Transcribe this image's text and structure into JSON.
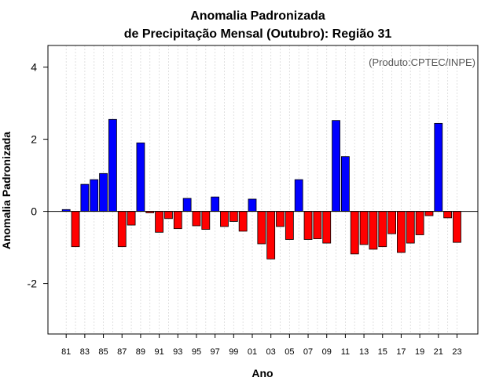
{
  "chart_data": {
    "type": "bar",
    "title_line1": "Anomalia Padronizada",
    "title_line2": "de Precipitação Mensal (Outubro): Região 31",
    "credit": "(Produto:CPTEC/INPE)",
    "xlabel": "Ano",
    "ylabel": "Anomalia Padronizada",
    "ylim": [
      -3.4,
      4.6
    ],
    "yticks": [
      -2,
      0,
      2,
      4
    ],
    "ytick_labels": [
      "-2",
      "0",
      "2",
      "4"
    ],
    "xtick_labels": [
      "81",
      "83",
      "85",
      "87",
      "89",
      "91",
      "93",
      "95",
      "97",
      "99",
      "01",
      "03",
      "05",
      "07",
      "09",
      "11",
      "13",
      "15",
      "17",
      "19",
      "21",
      "23"
    ],
    "positive_color": "#0000ff",
    "negative_color": "#ff0000",
    "categories": [
      "1981",
      "1982",
      "1983",
      "1984",
      "1985",
      "1986",
      "1987",
      "1988",
      "1989",
      "1990",
      "1991",
      "1992",
      "1993",
      "1994",
      "1995",
      "1996",
      "1997",
      "1998",
      "1999",
      "2000",
      "2001",
      "2002",
      "2003",
      "2004",
      "2005",
      "2006",
      "2007",
      "2008",
      "2009",
      "2010",
      "2011",
      "2012",
      "2013",
      "2014",
      "2015",
      "2016",
      "2017",
      "2018",
      "2019",
      "2020",
      "2021",
      "2022",
      "2023"
    ],
    "values": [
      0.05,
      -0.98,
      0.75,
      0.88,
      1.05,
      2.55,
      -0.98,
      -0.38,
      1.9,
      -0.04,
      -0.58,
      -0.2,
      -0.48,
      0.36,
      -0.4,
      -0.5,
      0.4,
      -0.42,
      -0.28,
      -0.55,
      0.34,
      -0.9,
      -1.32,
      -0.42,
      -0.78,
      0.88,
      -0.78,
      -0.76,
      -0.88,
      2.52,
      1.52,
      -1.18,
      -0.92,
      -1.05,
      -0.98,
      -0.62,
      -1.14,
      -0.88,
      -0.65,
      -0.12,
      2.44,
      -0.18,
      -0.86
    ]
  }
}
